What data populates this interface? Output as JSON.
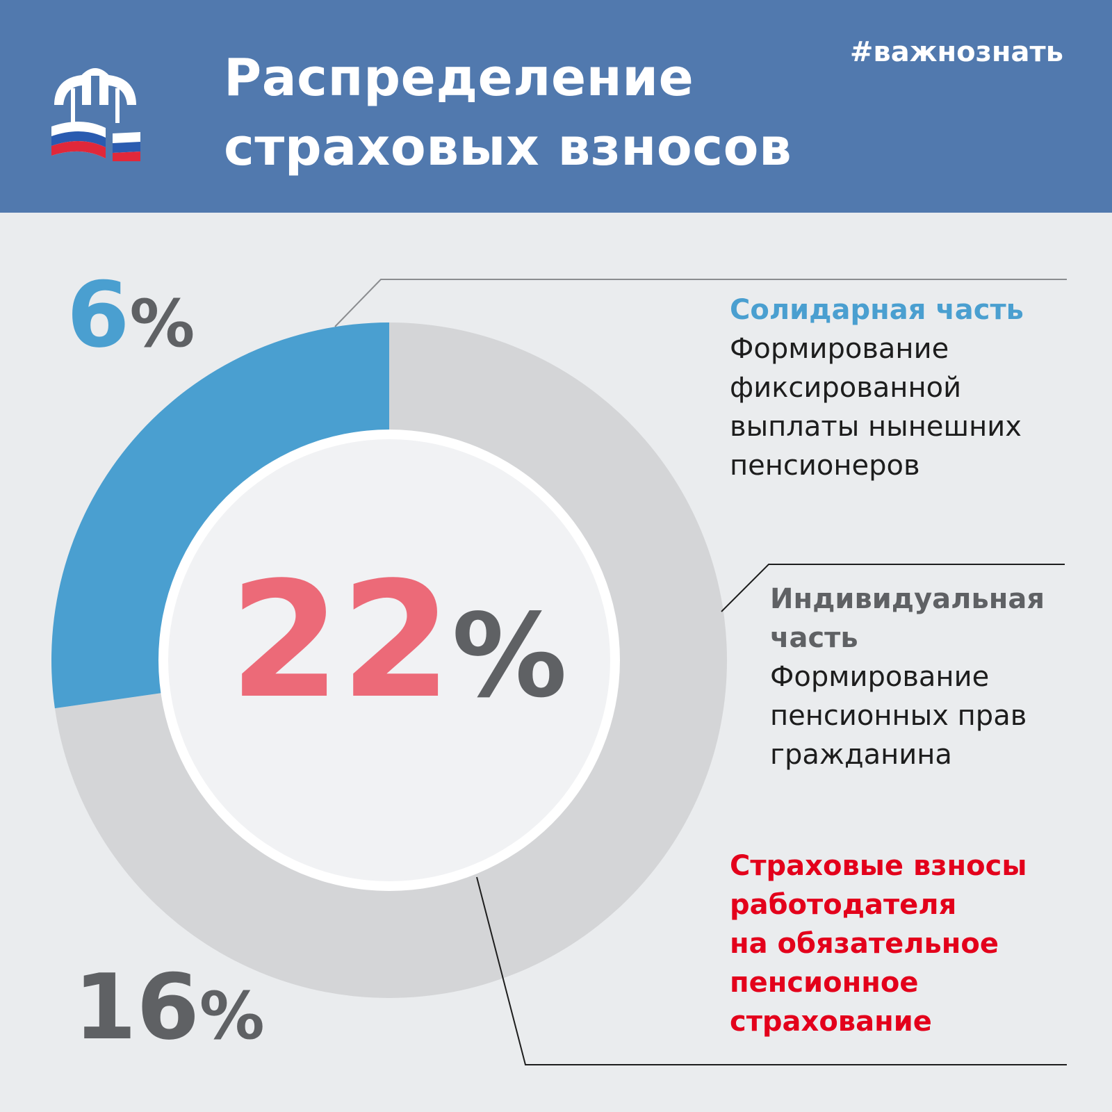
{
  "header": {
    "title_line1": "Распределение",
    "title_line2": "страховых взносов",
    "hashtag": "#важнознать",
    "logo_icon": "pfr-logo-icon",
    "background_color": "#5179ae"
  },
  "chart_data": {
    "type": "pie",
    "variant": "donut",
    "total": {
      "value": 22,
      "label": "22",
      "unit": "%"
    },
    "series": [
      {
        "name": "Солидарная часть",
        "value": 6,
        "label": "6",
        "unit": "%",
        "color": "#4a9fd0",
        "description_lines": [
          "Формирование",
          "фиксированной",
          "выплаты нынешних",
          "пенсионеров"
        ]
      },
      {
        "name": "Индивидуальная часть",
        "name_lines": [
          "Индивидуальная",
          "часть"
        ],
        "value": 16,
        "label": "16",
        "unit": "%",
        "color": "#d4d5d7",
        "description_lines": [
          "Формирование",
          "пенсионных прав",
          "гражданина"
        ]
      }
    ],
    "total_caption_lines": [
      "Страховые взносы",
      "работодателя",
      "на обязательное",
      "пенсионное",
      "страхование"
    ],
    "colors": {
      "solidarity": "#4a9fd0",
      "individual": "#d4d5d7",
      "total_number": "#ec6a78",
      "total_caption": "#e3001b",
      "percent_sign": "#5f6164"
    }
  }
}
